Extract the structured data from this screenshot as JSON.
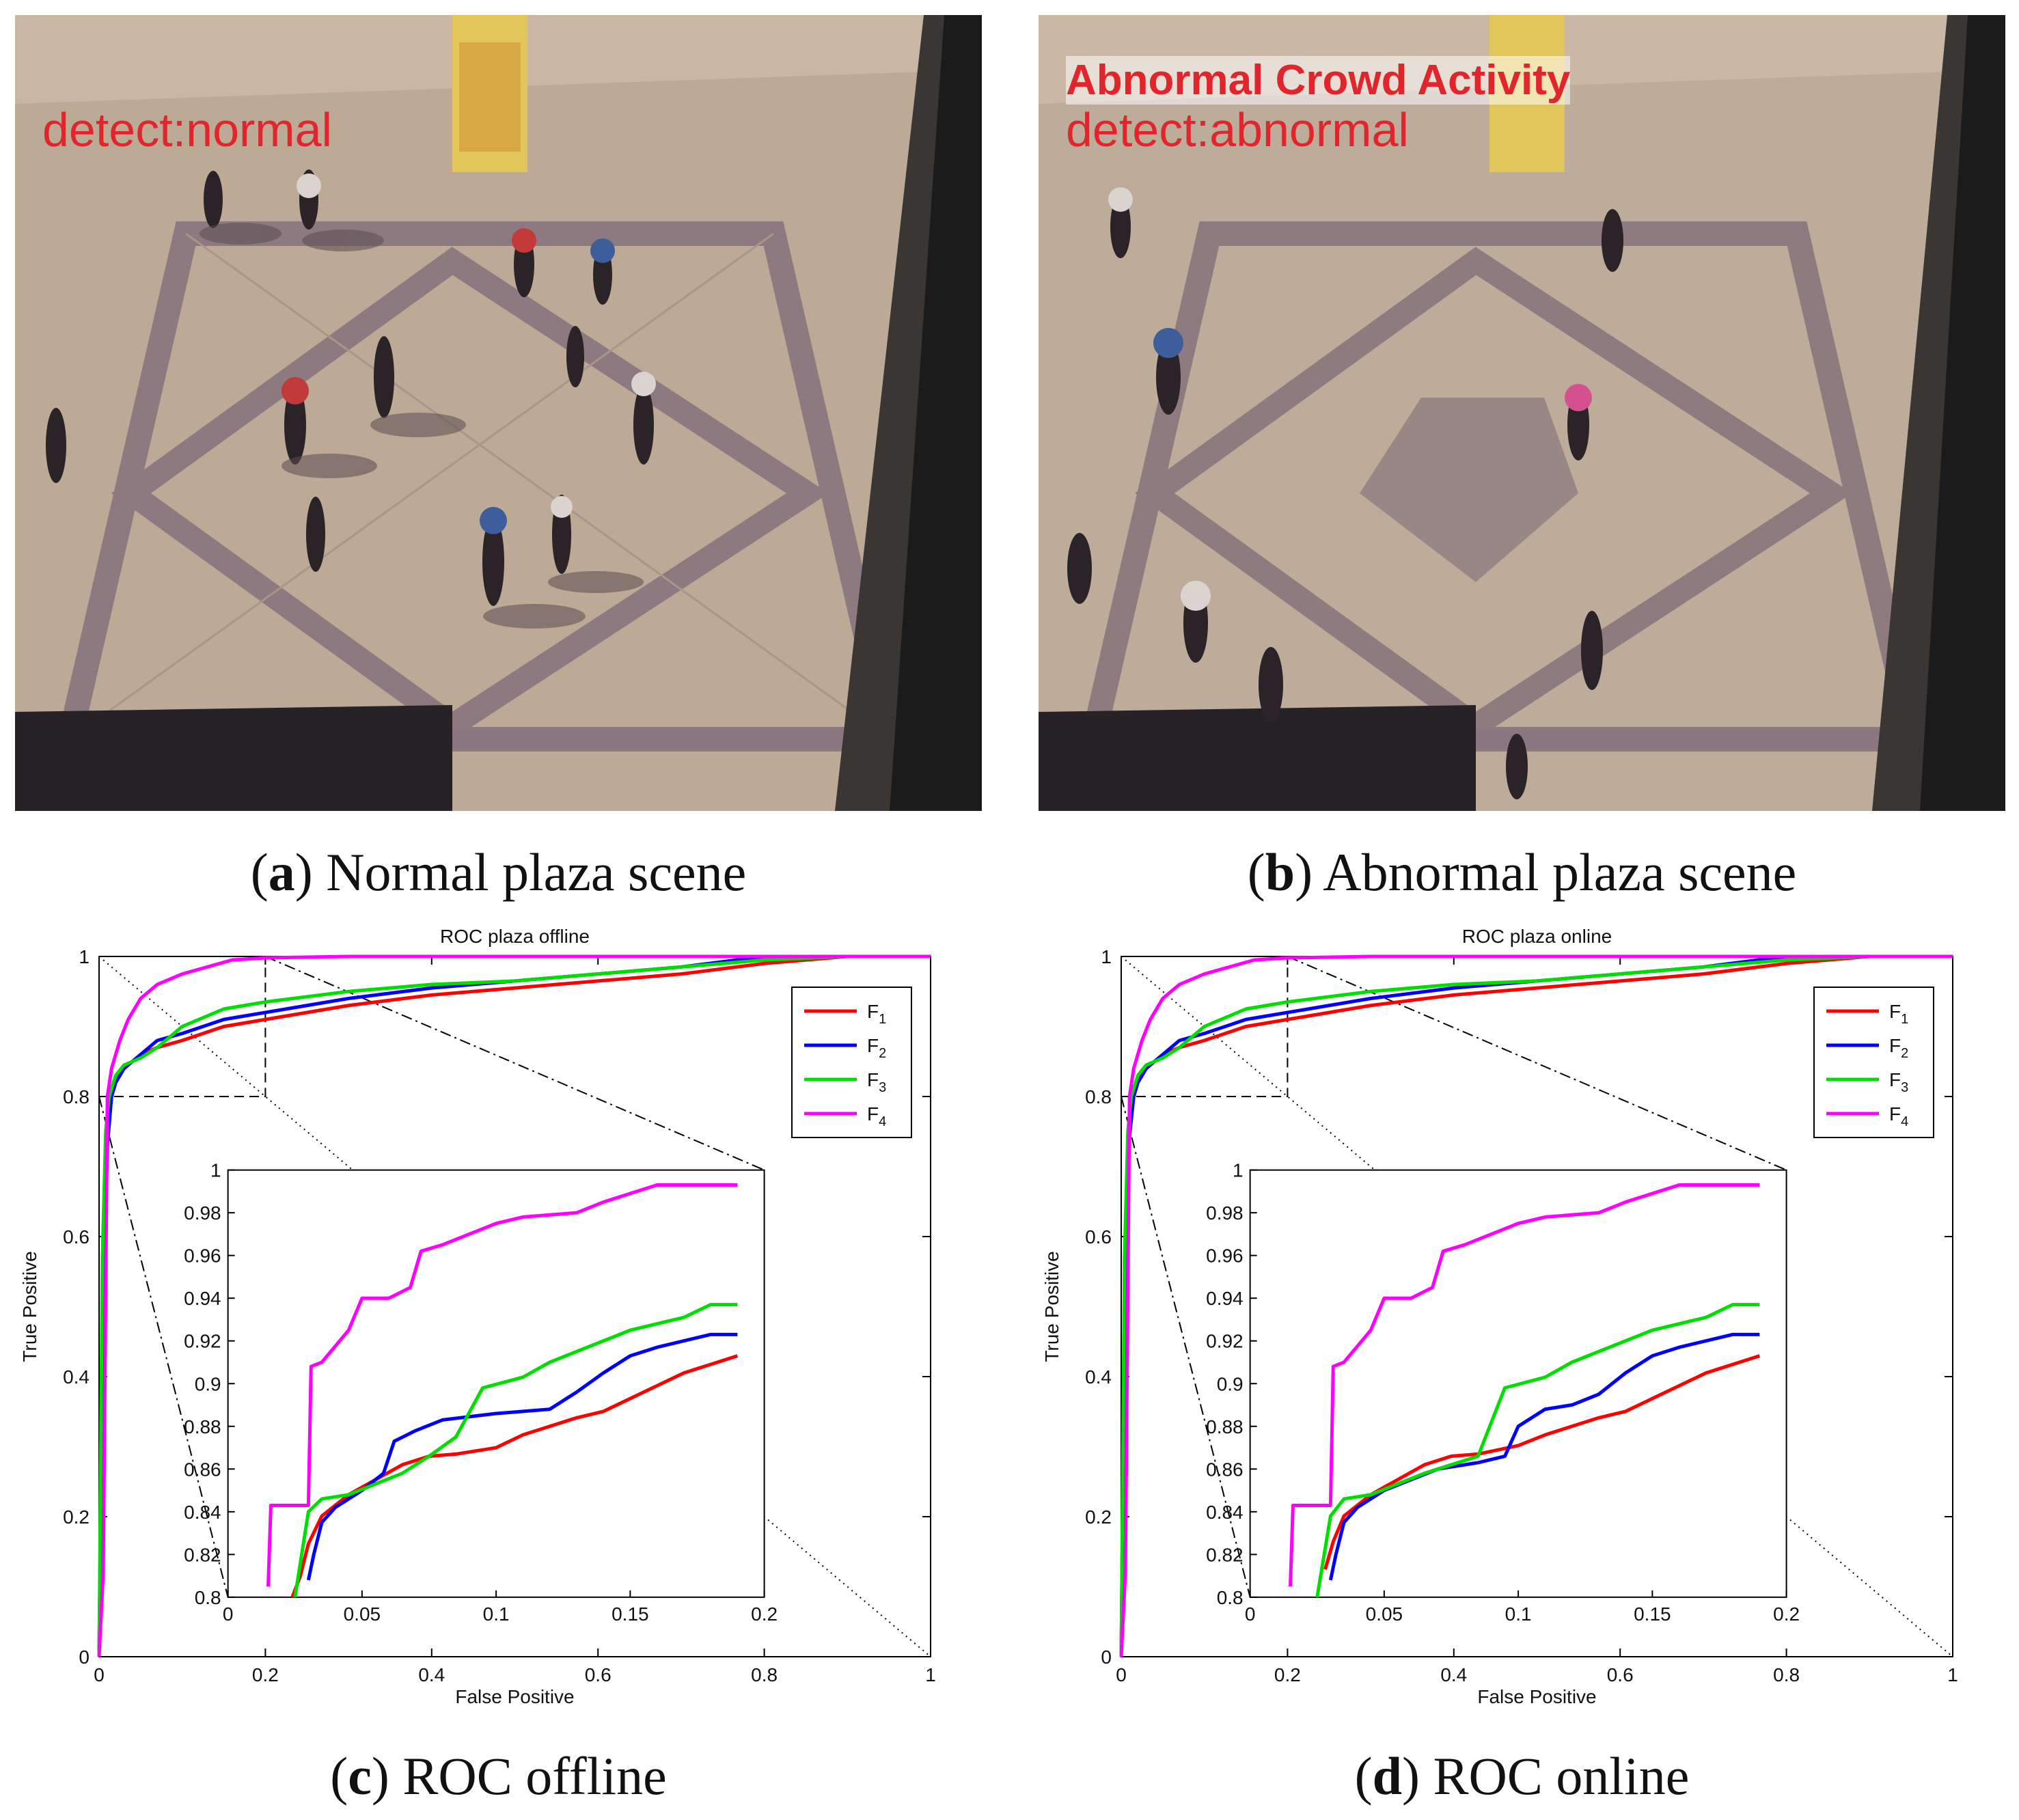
{
  "panels": [
    {
      "id": "a",
      "letter": "a",
      "caption": "Normal plaza scene",
      "overlay_lines": [
        "detect:normal"
      ]
    },
    {
      "id": "b",
      "letter": "b",
      "caption": "Abnormal plaza scene",
      "overlay_lines": [
        "Abnormal Crowd Activity",
        "detect:abnormal"
      ]
    },
    {
      "id": "c",
      "letter": "c",
      "caption": "ROC offline"
    },
    {
      "id": "d",
      "letter": "d",
      "caption": "ROC online"
    }
  ],
  "colors": {
    "F1": "#ff0000",
    "F2": "#0000ff",
    "F3": "#00dd00",
    "F4": "#ff00ff",
    "overlay_text": "#e0262c"
  },
  "chart_data": [
    {
      "type": "line",
      "title": "ROC plaza offline",
      "xlabel": "False Positive",
      "ylabel": "True Positive",
      "xlim": [
        0,
        1
      ],
      "ylim": [
        0,
        1
      ],
      "xticks": [
        "0",
        "0.2",
        "0.4",
        "0.6",
        "0.8",
        "1"
      ],
      "yticks": [
        "0",
        "0.2",
        "0.4",
        "0.6",
        "0.8",
        "1"
      ],
      "legend_position": "top-right",
      "grid": false,
      "series": [
        {
          "name": "F1",
          "sub": "1",
          "color": "#ff0000",
          "x": [
            0,
            0.005,
            0.01,
            0.015,
            0.02,
            0.03,
            0.05,
            0.07,
            0.1,
            0.15,
            0.2,
            0.3,
            0.4,
            0.5,
            0.6,
            0.7,
            0.8,
            0.9,
            1.0
          ],
          "y": [
            0,
            0.55,
            0.75,
            0.8,
            0.82,
            0.84,
            0.86,
            0.87,
            0.88,
            0.9,
            0.91,
            0.93,
            0.945,
            0.955,
            0.965,
            0.975,
            0.99,
            1.0,
            1.0
          ]
        },
        {
          "name": "F2",
          "sub": "2",
          "color": "#0000ff",
          "x": [
            0,
            0.005,
            0.01,
            0.015,
            0.02,
            0.03,
            0.05,
            0.07,
            0.1,
            0.15,
            0.2,
            0.3,
            0.4,
            0.5,
            0.6,
            0.7,
            0.8,
            0.9,
            1.0
          ],
          "y": [
            0,
            0.5,
            0.73,
            0.8,
            0.82,
            0.84,
            0.86,
            0.88,
            0.89,
            0.91,
            0.92,
            0.94,
            0.955,
            0.965,
            0.975,
            0.985,
            1.0,
            1.0,
            1.0
          ]
        },
        {
          "name": "F3",
          "sub": "3",
          "color": "#00dd00",
          "x": [
            0,
            0.004,
            0.008,
            0.012,
            0.02,
            0.03,
            0.05,
            0.07,
            0.1,
            0.15,
            0.2,
            0.3,
            0.4,
            0.5,
            0.6,
            0.7,
            0.8,
            0.9,
            1.0
          ],
          "y": [
            0,
            0.57,
            0.75,
            0.8,
            0.83,
            0.845,
            0.855,
            0.87,
            0.9,
            0.925,
            0.935,
            0.95,
            0.96,
            0.965,
            0.975,
            0.985,
            0.995,
            1.0,
            1.0
          ]
        },
        {
          "name": "F4",
          "sub": "4",
          "color": "#ff00ff",
          "x": [
            0,
            0.005,
            0.01,
            0.015,
            0.025,
            0.035,
            0.05,
            0.07,
            0.1,
            0.13,
            0.16,
            0.2,
            0.3,
            1.0
          ],
          "y": [
            0,
            0.12,
            0.8,
            0.84,
            0.88,
            0.91,
            0.94,
            0.96,
            0.975,
            0.985,
            0.995,
            0.998,
            1.0,
            1.0
          ]
        }
      ],
      "inset": {
        "xlim": [
          0,
          0.2
        ],
        "ylim": [
          0.8,
          1
        ],
        "xticks": [
          "0",
          "0.05",
          "0.1",
          "0.15",
          "0.2"
        ],
        "yticks": [
          "0.8",
          "0.82",
          "0.84",
          "0.86",
          "0.88",
          "0.9",
          "0.92",
          "0.94",
          "0.96",
          "0.98",
          "1"
        ],
        "series": [
          {
            "name": "F1",
            "color": "#ff0000",
            "x": [
              0.024,
              0.027,
              0.03,
              0.035,
              0.045,
              0.055,
              0.065,
              0.075,
              0.085,
              0.1,
              0.11,
              0.12,
              0.13,
              0.14,
              0.15,
              0.16,
              0.17,
              0.18,
              0.19
            ],
            "y": [
              0.8,
              0.81,
              0.825,
              0.838,
              0.848,
              0.855,
              0.862,
              0.866,
              0.867,
              0.87,
              0.876,
              0.88,
              0.884,
              0.887,
              0.893,
              0.899,
              0.905,
              0.909,
              0.913
            ]
          },
          {
            "name": "F2",
            "color": "#0000ff",
            "x": [
              0.03,
              0.032,
              0.035,
              0.04,
              0.05,
              0.058,
              0.062,
              0.07,
              0.08,
              0.1,
              0.12,
              0.13,
              0.14,
              0.15,
              0.16,
              0.17,
              0.18,
              0.19
            ],
            "y": [
              0.808,
              0.82,
              0.835,
              0.842,
              0.85,
              0.858,
              0.873,
              0.878,
              0.883,
              0.886,
              0.888,
              0.896,
              0.905,
              0.913,
              0.917,
              0.92,
              0.923,
              0.923
            ]
          },
          {
            "name": "F3",
            "color": "#00dd00",
            "x": [
              0.025,
              0.03,
              0.035,
              0.045,
              0.055,
              0.065,
              0.075,
              0.085,
              0.095,
              0.11,
              0.12,
              0.13,
              0.14,
              0.15,
              0.16,
              0.17,
              0.18,
              0.19
            ],
            "y": [
              0.8,
              0.84,
              0.846,
              0.848,
              0.853,
              0.858,
              0.866,
              0.875,
              0.898,
              0.903,
              0.91,
              0.915,
              0.92,
              0.925,
              0.928,
              0.931,
              0.937,
              0.937
            ]
          },
          {
            "name": "F4",
            "color": "#ff00ff",
            "x": [
              0.015,
              0.016,
              0.03,
              0.031,
              0.035,
              0.045,
              0.05,
              0.06,
              0.068,
              0.072,
              0.08,
              0.09,
              0.1,
              0.11,
              0.13,
              0.14,
              0.16,
              0.19
            ],
            "y": [
              0.805,
              0.843,
              0.843,
              0.908,
              0.91,
              0.925,
              0.94,
              0.94,
              0.945,
              0.962,
              0.965,
              0.97,
              0.975,
              0.978,
              0.98,
              0.985,
              0.993,
              0.993
            ]
          }
        ]
      }
    },
    {
      "type": "line",
      "title": "ROC plaza online",
      "xlabel": "False Positive",
      "ylabel": "True Positive",
      "xlim": [
        0,
        1
      ],
      "ylim": [
        0,
        1
      ],
      "xticks": [
        "0",
        "0.2",
        "0.4",
        "0.6",
        "0.8",
        "1"
      ],
      "yticks": [
        "0",
        "0.2",
        "0.4",
        "0.6",
        "0.8",
        "1"
      ],
      "legend_position": "top-right",
      "grid": false,
      "series": [
        {
          "name": "F1",
          "sub": "1",
          "color": "#ff0000",
          "x": [
            0,
            0.004,
            0.008,
            0.015,
            0.02,
            0.03,
            0.05,
            0.07,
            0.1,
            0.15,
            0.2,
            0.3,
            0.4,
            0.5,
            0.6,
            0.7,
            0.8,
            0.9,
            1.0
          ],
          "y": [
            0,
            0.5,
            0.73,
            0.8,
            0.82,
            0.84,
            0.86,
            0.87,
            0.88,
            0.9,
            0.91,
            0.93,
            0.945,
            0.955,
            0.965,
            0.975,
            0.99,
            1.0,
            1.0
          ]
        },
        {
          "name": "F2",
          "sub": "2",
          "color": "#0000ff",
          "x": [
            0,
            0.004,
            0.008,
            0.015,
            0.02,
            0.03,
            0.05,
            0.07,
            0.1,
            0.15,
            0.2,
            0.3,
            0.4,
            0.5,
            0.6,
            0.7,
            0.8,
            0.9,
            1.0
          ],
          "y": [
            0,
            0.48,
            0.72,
            0.8,
            0.82,
            0.84,
            0.86,
            0.88,
            0.89,
            0.91,
            0.92,
            0.94,
            0.955,
            0.965,
            0.975,
            0.985,
            1.0,
            1.0,
            1.0
          ]
        },
        {
          "name": "F3",
          "sub": "3",
          "color": "#00dd00",
          "x": [
            0,
            0.004,
            0.008,
            0.012,
            0.02,
            0.03,
            0.05,
            0.07,
            0.1,
            0.15,
            0.2,
            0.3,
            0.4,
            0.5,
            0.6,
            0.7,
            0.8,
            0.9,
            1.0
          ],
          "y": [
            0,
            0.57,
            0.75,
            0.8,
            0.83,
            0.845,
            0.855,
            0.87,
            0.9,
            0.925,
            0.935,
            0.95,
            0.96,
            0.965,
            0.975,
            0.985,
            0.995,
            1.0,
            1.0
          ]
        },
        {
          "name": "F4",
          "sub": "4",
          "color": "#ff00ff",
          "x": [
            0,
            0.005,
            0.01,
            0.015,
            0.025,
            0.035,
            0.05,
            0.07,
            0.1,
            0.13,
            0.16,
            0.2,
            0.3,
            1.0
          ],
          "y": [
            0,
            0.12,
            0.8,
            0.84,
            0.88,
            0.91,
            0.94,
            0.96,
            0.975,
            0.985,
            0.995,
            0.998,
            1.0,
            1.0
          ]
        }
      ],
      "inset": {
        "xlim": [
          0,
          0.2
        ],
        "ylim": [
          0.8,
          1
        ],
        "xticks": [
          "0",
          "0.05",
          "0.1",
          "0.15",
          "0.2"
        ],
        "yticks": [
          "0.8",
          "0.82",
          "0.84",
          "0.86",
          "0.88",
          "0.9",
          "0.92",
          "0.94",
          "0.96",
          "0.98",
          "1"
        ],
        "series": [
          {
            "name": "F1",
            "color": "#ff0000",
            "x": [
              0.028,
              0.031,
              0.035,
              0.045,
              0.055,
              0.065,
              0.075,
              0.085,
              0.1,
              0.11,
              0.12,
              0.13,
              0.14,
              0.15,
              0.16,
              0.17,
              0.18,
              0.19
            ],
            "y": [
              0.813,
              0.826,
              0.838,
              0.848,
              0.855,
              0.862,
              0.866,
              0.867,
              0.871,
              0.876,
              0.88,
              0.884,
              0.887,
              0.893,
              0.899,
              0.905,
              0.909,
              0.913
            ]
          },
          {
            "name": "F2",
            "color": "#0000ff",
            "x": [
              0.03,
              0.032,
              0.035,
              0.04,
              0.05,
              0.06,
              0.07,
              0.085,
              0.095,
              0.1,
              0.11,
              0.12,
              0.13,
              0.14,
              0.15,
              0.16,
              0.17,
              0.18,
              0.19
            ],
            "y": [
              0.808,
              0.82,
              0.835,
              0.842,
              0.85,
              0.855,
              0.86,
              0.863,
              0.866,
              0.88,
              0.888,
              0.89,
              0.895,
              0.905,
              0.913,
              0.917,
              0.92,
              0.923,
              0.923
            ]
          },
          {
            "name": "F3",
            "color": "#00dd00",
            "x": [
              0.025,
              0.03,
              0.035,
              0.045,
              0.055,
              0.065,
              0.075,
              0.085,
              0.095,
              0.11,
              0.12,
              0.13,
              0.14,
              0.15,
              0.16,
              0.17,
              0.18,
              0.19
            ],
            "y": [
              0.8,
              0.838,
              0.846,
              0.848,
              0.853,
              0.858,
              0.862,
              0.866,
              0.898,
              0.903,
              0.91,
              0.915,
              0.92,
              0.925,
              0.928,
              0.931,
              0.937,
              0.937
            ]
          },
          {
            "name": "F4",
            "color": "#ff00ff",
            "x": [
              0.015,
              0.016,
              0.03,
              0.031,
              0.035,
              0.045,
              0.05,
              0.06,
              0.068,
              0.072,
              0.08,
              0.09,
              0.1,
              0.11,
              0.13,
              0.14,
              0.16,
              0.19
            ],
            "y": [
              0.805,
              0.843,
              0.843,
              0.908,
              0.91,
              0.925,
              0.94,
              0.94,
              0.945,
              0.962,
              0.965,
              0.97,
              0.975,
              0.978,
              0.98,
              0.985,
              0.993,
              0.993
            ]
          }
        ]
      }
    }
  ]
}
